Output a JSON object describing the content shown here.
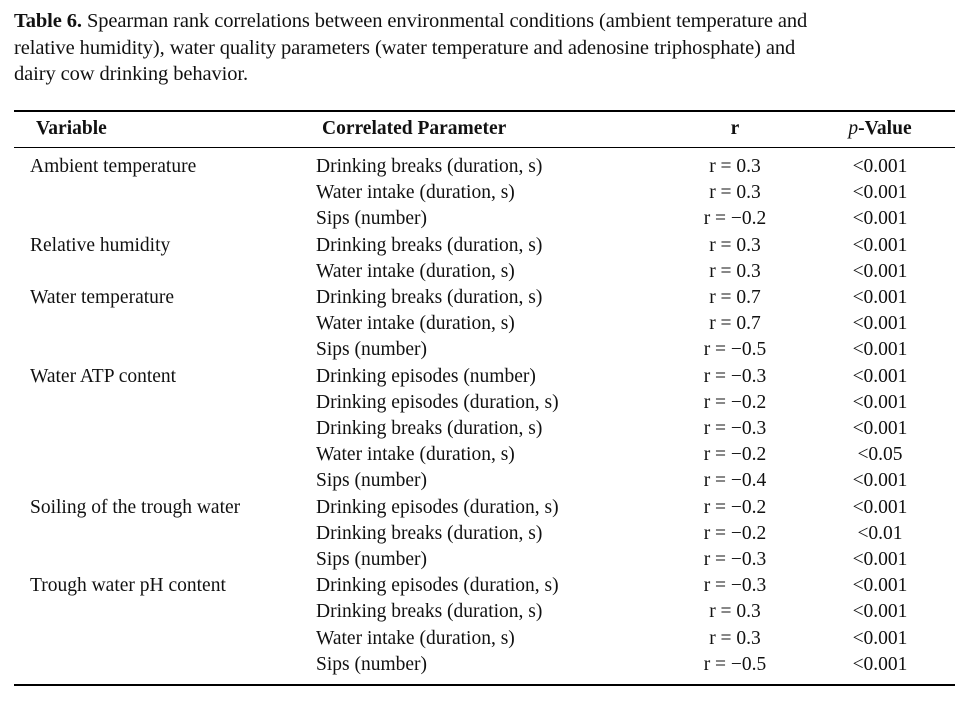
{
  "caption": {
    "label": "Table 6.",
    "line1": " Spearman rank correlations between environmental conditions (ambient temperature and",
    "line2": "relative humidity), water quality parameters (water temperature and adenosine triphosphate) and",
    "line3": "dairy cow drinking behavior."
  },
  "table": {
    "headers": {
      "variable": "Variable",
      "parameter": "Correlated Parameter",
      "r": "r",
      "p_italic": "p",
      "p_rest": "-Value"
    },
    "rows": [
      {
        "variable": "Ambient temperature",
        "parameter": "Drinking breaks (duration, s)",
        "r": "r = 0.3",
        "p": "<0.001"
      },
      {
        "variable": "",
        "parameter": "Water intake (duration, s)",
        "r": "r = 0.3",
        "p": "<0.001"
      },
      {
        "variable": "",
        "parameter": "Sips (number)",
        "r": "r = −0.2",
        "p": "<0.001"
      },
      {
        "variable": "Relative humidity",
        "parameter": "Drinking breaks (duration, s)",
        "r": "r = 0.3",
        "p": "<0.001"
      },
      {
        "variable": "",
        "parameter": "Water intake (duration, s)",
        "r": "r = 0.3",
        "p": "<0.001"
      },
      {
        "variable": "Water temperature",
        "parameter": "Drinking breaks (duration, s)",
        "r": "r = 0.7",
        "p": "<0.001"
      },
      {
        "variable": "",
        "parameter": "Water intake (duration, s)",
        "r": "r = 0.7",
        "p": "<0.001"
      },
      {
        "variable": "",
        "parameter": "Sips (number)",
        "r": "r = −0.5",
        "p": "<0.001"
      },
      {
        "variable": "Water ATP content",
        "parameter": "Drinking episodes (number)",
        "r": "r = −0.3",
        "p": "<0.001"
      },
      {
        "variable": "",
        "parameter": "Drinking episodes (duration, s)",
        "r": "r = −0.2",
        "p": "<0.001"
      },
      {
        "variable": "",
        "parameter": "Drinking breaks (duration, s)",
        "r": "r = −0.3",
        "p": "<0.001"
      },
      {
        "variable": "",
        "parameter": "Water intake (duration, s)",
        "r": "r = −0.2",
        "p": "<0.05"
      },
      {
        "variable": "",
        "parameter": "Sips (number)",
        "r": "r = −0.4",
        "p": "<0.001"
      },
      {
        "variable": "Soiling of the trough water",
        "parameter": "Drinking episodes (duration, s)",
        "r": "r = −0.2",
        "p": "<0.001"
      },
      {
        "variable": "",
        "parameter": "Drinking breaks (duration, s)",
        "r": "r = −0.2",
        "p": "<0.01"
      },
      {
        "variable": "",
        "parameter": "Sips (number)",
        "r": "r = −0.3",
        "p": "<0.001"
      },
      {
        "variable": "Trough water pH content",
        "parameter": "Drinking episodes (duration, s)",
        "r": "r = −0.3",
        "p": "<0.001"
      },
      {
        "variable": "",
        "parameter": "Drinking breaks (duration, s)",
        "r": "r = 0.3",
        "p": "<0.001"
      },
      {
        "variable": "",
        "parameter": "Water intake (duration, s)",
        "r": "r = 0.3",
        "p": "<0.001"
      },
      {
        "variable": "",
        "parameter": "Sips (number)",
        "r": "r = −0.5",
        "p": "<0.001"
      }
    ]
  }
}
